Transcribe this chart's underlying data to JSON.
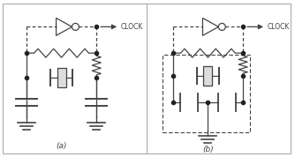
{
  "bg_color": "#ffffff",
  "border_color": "#aaaaaa",
  "line_color": "#444444",
  "dot_color": "#222222",
  "label_a": "(a)",
  "label_b": "(b)",
  "clock_label": "CLOCK",
  "fig_width": 3.34,
  "fig_height": 1.78,
  "dpi": 100
}
